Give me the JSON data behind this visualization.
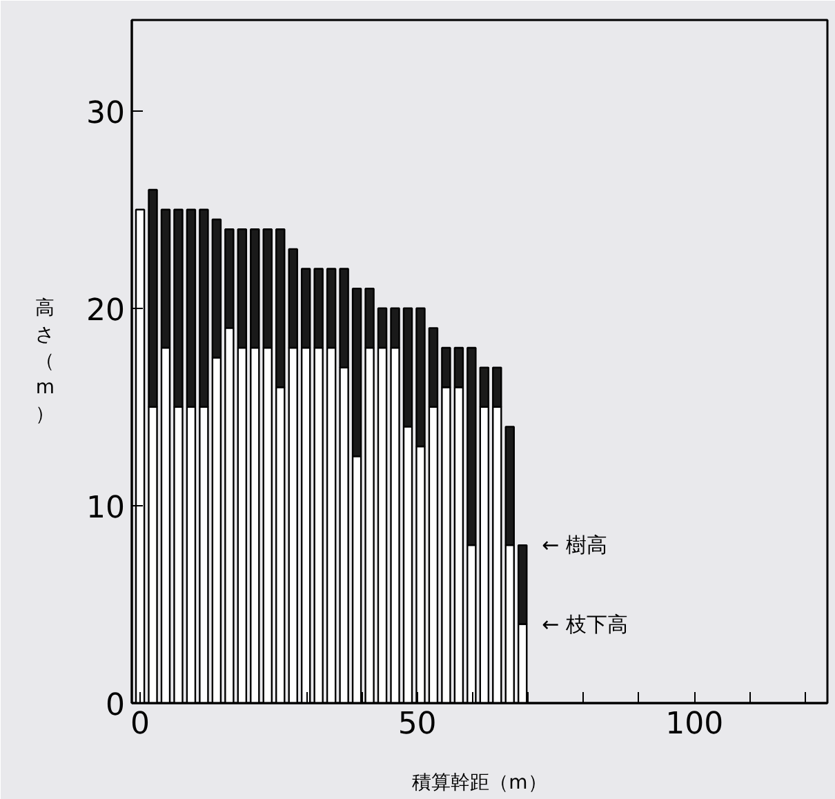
{
  "chart_data": {
    "type": "bar",
    "stacked": true,
    "xlabel": "積算幹距（m）",
    "ylabel": "高さ（m）",
    "x": [
      0,
      2.3,
      4.6,
      6.9,
      9.2,
      11.5,
      13.8,
      16.1,
      18.4,
      20.7,
      23,
      25.3,
      27.6,
      29.9,
      32.2,
      34.5,
      36.8,
      39.1,
      41.4,
      43.7,
      46,
      48.3,
      50.6,
      52.9,
      55.2,
      57.5,
      59.8,
      62.1,
      64.4,
      66.7,
      69
    ],
    "series": [
      {
        "color": "#ffffff",
        "values": [
          25,
          15,
          18,
          15,
          15,
          15,
          17.5,
          19,
          18,
          18,
          18,
          16,
          18,
          18,
          18,
          18,
          17,
          12.5,
          18,
          18,
          18,
          14,
          13,
          15,
          16,
          16,
          8,
          15,
          15,
          8,
          4
        ]
      },
      {
        "color": "#1a1a1a",
        "values": [
          null,
          11,
          7,
          10,
          10,
          10,
          7,
          5,
          6,
          6,
          6,
          8,
          5,
          4,
          4,
          4,
          5,
          8.5,
          3,
          2,
          2,
          6,
          7,
          4,
          2,
          2,
          10,
          2,
          2,
          6,
          4
        ]
      }
    ],
    "xlim": [
      -1.5,
      124
    ],
    "ylim": [
      0,
      34.6
    ],
    "xticks": [
      0,
      {
        "value": 10,
        "label": null
      },
      {
        "value": 20,
        "label": null
      },
      {
        "value": 30,
        "label": null
      },
      {
        "value": 40,
        "label": null
      },
      50,
      {
        "value": 60,
        "label": null
      },
      {
        "value": 70,
        "label": null
      },
      {
        "value": 80,
        "label": null
      },
      {
        "value": 90,
        "label": null
      },
      100,
      {
        "value": 110,
        "label": null
      },
      {
        "value": 120,
        "label": null
      }
    ],
    "yticks": [
      0,
      10,
      20,
      30
    ],
    "grid": false,
    "annotations": [
      {
        "text": "← 樹高",
        "x": 69,
        "y": 8
      },
      {
        "text": "← 枝下高",
        "x": 69,
        "y": 4
      }
    ]
  }
}
